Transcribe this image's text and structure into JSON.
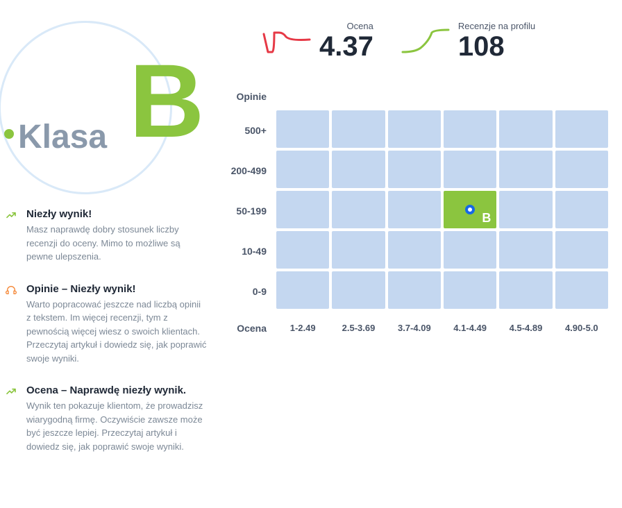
{
  "colors": {
    "accent_green": "#8bc53f",
    "accent_blue": "#1568e6",
    "accent_orange": "#f58634",
    "spark_red": "#e63946",
    "text_primary": "#202937",
    "text_muted": "#7c8896",
    "cell_bg": "#c4d7f0",
    "circle_border": "#d9e9f8"
  },
  "klasa": {
    "label": "Klasa",
    "letter": "B"
  },
  "metrics": {
    "rating": {
      "label": "Ocena",
      "value": "4.37"
    },
    "reviews": {
      "label": "Recenzje na profilu",
      "value": "108"
    }
  },
  "insights": [
    {
      "icon": "trend-up",
      "icon_color": "#8bc53f",
      "title": "Niezły wynik!",
      "desc": "Masz naprawdę dobry stosunek liczby recenzji do oceny. Mimo to możliwe są pewne ulepszenia."
    },
    {
      "icon": "headphones",
      "icon_color": "#f58634",
      "title": "Opinie – Niezły wynik!",
      "desc": "Warto popracować jeszcze nad liczbą opinii z tekstem. Im więcej recenzji, tym z pewnością więcej wiesz o swoich klientach. Przeczytaj artykuł i dowiedz się, jak poprawić swoje wyniki."
    },
    {
      "icon": "trend-up",
      "icon_color": "#8bc53f",
      "title": "Ocena – Naprawdę niezły wynik.",
      "desc": "Wynik ten pokazuje klientom, że prowadzisz wiarygodną firmę. Oczywiście zawsze może być jeszcze lepiej. Przeczytaj artykuł i dowiedz się, jak poprawić swoje wyniki."
    }
  ],
  "heatmap": {
    "y_axis_title": "Opinie",
    "x_axis_title": "Ocena",
    "y_labels": [
      "500+",
      "200-499",
      "50-199",
      "10-49",
      "0-9"
    ],
    "x_labels": [
      "1-2.49",
      "2.5-3.69",
      "3.7-4.09",
      "4.1-4.49",
      "4.5-4.89",
      "4.90-5.0"
    ],
    "rows": 5,
    "cols": 6,
    "highlight": {
      "row": 2,
      "col": 3,
      "letter": "B"
    }
  }
}
